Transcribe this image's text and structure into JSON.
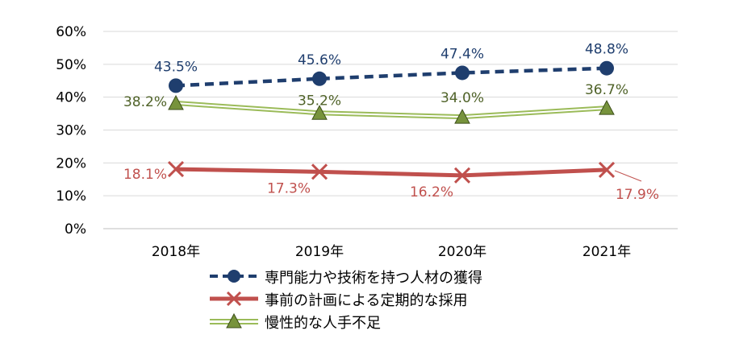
{
  "chart_data": {
    "type": "line",
    "title": "",
    "xlabel": "",
    "ylabel": "",
    "categories": [
      "2018年",
      "2019年",
      "2020年",
      "2021年"
    ],
    "y_ticks": [
      "0%",
      "10%",
      "20%",
      "30%",
      "40%",
      "50%",
      "60%"
    ],
    "ylim": [
      0,
      60
    ],
    "grid": true,
    "legend_position": "bottom",
    "series": [
      {
        "name": "専門能力や技術を持つ人材の獲得",
        "values": [
          43.5,
          45.6,
          47.4,
          48.8
        ],
        "labels": [
          "43.5%",
          "45.6%",
          "47.4%",
          "48.8%"
        ],
        "color": "#1f3e6e",
        "label_color": "#1f3e6e",
        "style": "dashed",
        "marker": "circle"
      },
      {
        "name": "事前の計画による定期的な採用",
        "values": [
          18.1,
          17.3,
          16.2,
          17.9
        ],
        "labels": [
          "18.1%",
          "17.3%",
          "16.2%",
          "17.9%"
        ],
        "color": "#c0504d",
        "label_color": "#c0504d",
        "style": "solid",
        "marker": "x"
      },
      {
        "name": "慢性的な人手不足",
        "values": [
          38.2,
          35.2,
          34.0,
          36.7
        ],
        "labels": [
          "38.2%",
          "35.2%",
          "34.0%",
          "36.7%"
        ],
        "color": "#9bbb59",
        "label_color": "#4f6228",
        "style": "double",
        "marker": "triangle"
      }
    ]
  }
}
